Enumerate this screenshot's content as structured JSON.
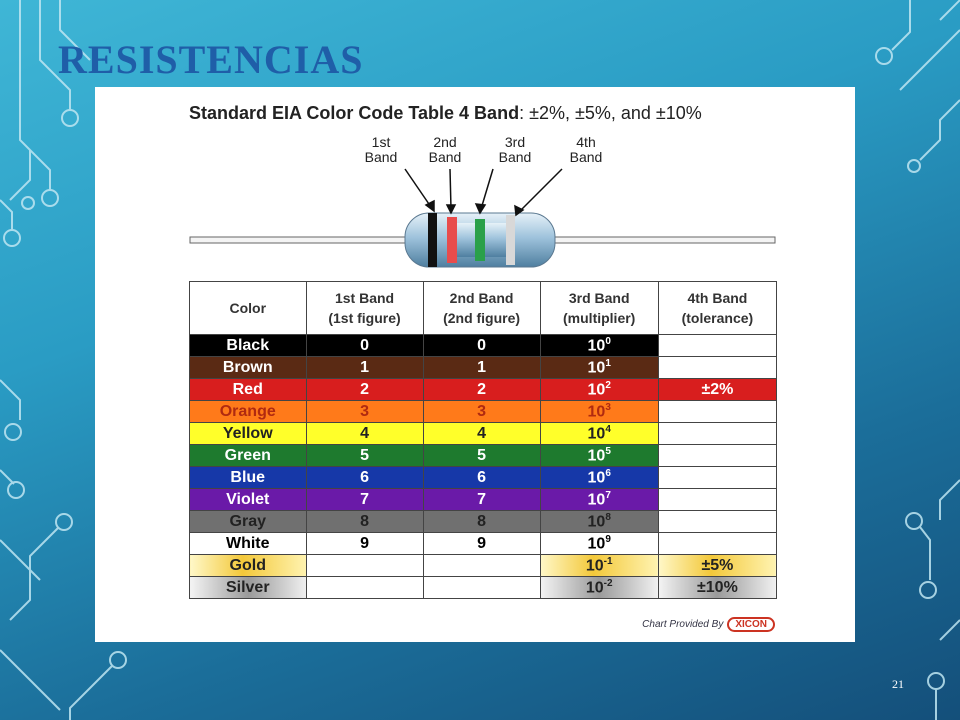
{
  "slide": {
    "title": "RESISTENCIAS",
    "page_number": "21"
  },
  "chart": {
    "title_main": "Standard EIA Color Code Table",
    "title_band": "4 Band",
    "title_sub": ":  ±2%, ±5%, and ±10%",
    "band_labels": [
      [
        "1st",
        "Band"
      ],
      [
        "2nd",
        "Band"
      ],
      [
        "3rd",
        "Band"
      ],
      [
        "4th",
        "Band"
      ]
    ],
    "headers": [
      [
        "Color"
      ],
      [
        "1st Band",
        "(1st figure)"
      ],
      [
        "2nd Band",
        "(2nd figure)"
      ],
      [
        "3rd Band",
        "(multiplier)"
      ],
      [
        "4th Band",
        "(tolerance)"
      ]
    ],
    "rows": [
      {
        "color": "Black",
        "bg": "#000000",
        "fg": "#ffffff",
        "f1": "0",
        "f2": "0",
        "mult_base": "10",
        "mult_exp": "0",
        "tol": "",
        "tol_bg": "#ffffff",
        "tol_fg": "#000"
      },
      {
        "color": "Brown",
        "bg": "#5a2a14",
        "fg": "#ffffff",
        "f1": "1",
        "f2": "1",
        "mult_base": "10",
        "mult_exp": "1",
        "tol": "",
        "tol_bg": "#ffffff",
        "tol_fg": "#000"
      },
      {
        "color": "Red",
        "bg": "#d81e1e",
        "fg": "#ffffff",
        "f1": "2",
        "f2": "2",
        "mult_base": "10",
        "mult_exp": "2",
        "tol": "±2%",
        "tol_bg": "#d81e1e",
        "tol_fg": "#ffffff"
      },
      {
        "color": "Orange",
        "bg": "#ff7a1a",
        "fg": "#b02a10",
        "f1": "3",
        "f2": "3",
        "mult_base": "10",
        "mult_exp": "3",
        "tol": "",
        "tol_bg": "#ffffff",
        "tol_fg": "#000"
      },
      {
        "color": "Yellow",
        "bg": "#ffff2a",
        "fg": "#222222",
        "f1": "4",
        "f2": "4",
        "mult_base": "10",
        "mult_exp": "4",
        "tol": "",
        "tol_bg": "#ffffff",
        "tol_fg": "#000"
      },
      {
        "color": "Green",
        "bg": "#1e7a2e",
        "fg": "#ffffff",
        "f1": "5",
        "f2": "5",
        "mult_base": "10",
        "mult_exp": "5",
        "tol": "",
        "tol_bg": "#ffffff",
        "tol_fg": "#000"
      },
      {
        "color": "Blue",
        "bg": "#1638a8",
        "fg": "#ffffff",
        "f1": "6",
        "f2": "6",
        "mult_base": "10",
        "mult_exp": "6",
        "tol": "",
        "tol_bg": "#ffffff",
        "tol_fg": "#000"
      },
      {
        "color": "Violet",
        "bg": "#6a1aa8",
        "fg": "#ffffff",
        "f1": "7",
        "f2": "7",
        "mult_base": "10",
        "mult_exp": "7",
        "tol": "",
        "tol_bg": "#ffffff",
        "tol_fg": "#000"
      },
      {
        "color": "Gray",
        "bg": "#707070",
        "fg": "#222222",
        "f1": "8",
        "f2": "8",
        "mult_base": "10",
        "mult_exp": "8",
        "tol": "",
        "tol_bg": "#ffffff",
        "tol_fg": "#000"
      },
      {
        "color": "White",
        "bg": "#ffffff",
        "fg": "#000000",
        "f1": "9",
        "f2": "9",
        "mult_base": "10",
        "mult_exp": "9",
        "tol": "",
        "tol_bg": "#ffffff",
        "tol_fg": "#000"
      },
      {
        "color": "Gold",
        "bg": "gold",
        "fg": "#222222",
        "f1": "",
        "f2": "",
        "mult_base": "10",
        "mult_exp": "-1",
        "tol": "±5%",
        "tol_bg": "gold",
        "tol_fg": "#222"
      },
      {
        "color": "Silver",
        "bg": "silver",
        "fg": "#222222",
        "f1": "",
        "f2": "",
        "mult_base": "10",
        "mult_exp": "-2",
        "tol": "±10%",
        "tol_bg": "silver",
        "tol_fg": "#222"
      }
    ],
    "credit_text": "Chart Provided By",
    "credit_logo": "XICON"
  }
}
